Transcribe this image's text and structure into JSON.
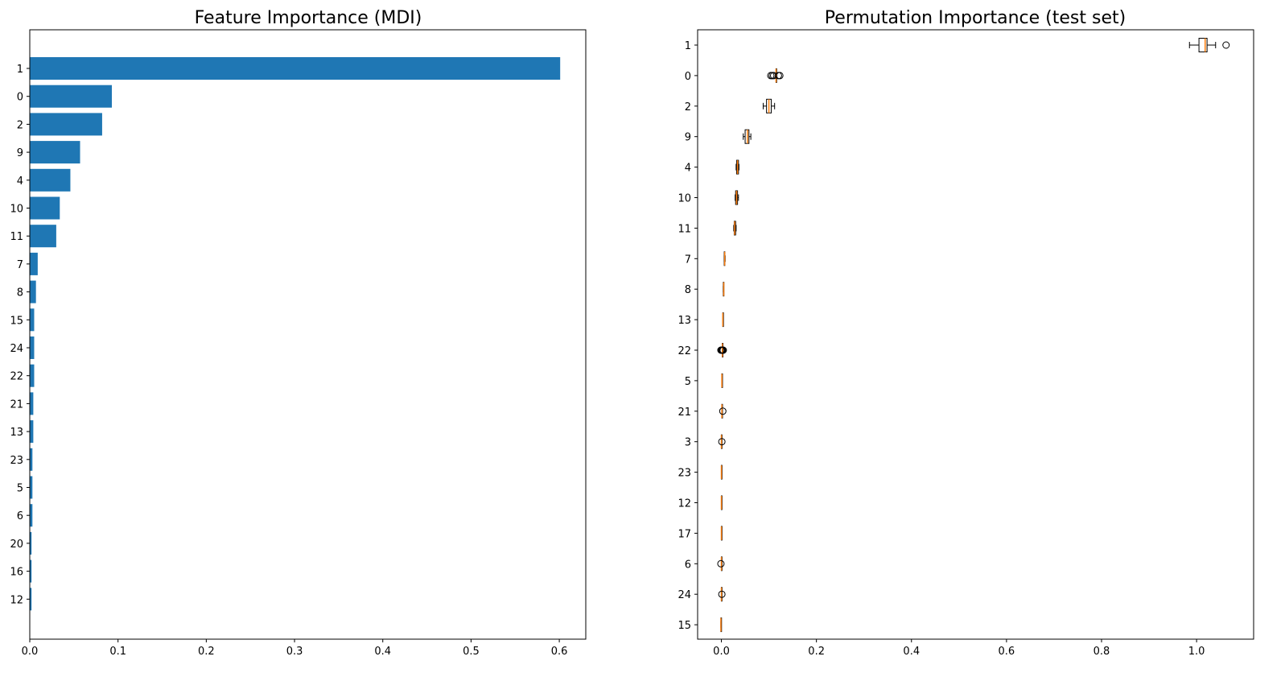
{
  "chart_data": [
    {
      "type": "bar",
      "orientation": "horizontal",
      "title": "Feature Importance (MDI)",
      "xlabel": "",
      "ylabel": "",
      "xlim": [
        0,
        0.63
      ],
      "x_ticks": [
        "0.0",
        "0.1",
        "0.2",
        "0.3",
        "0.4",
        "0.5",
        "0.6"
      ],
      "bar_color": "#1f77b4",
      "categories": [
        "1",
        "0",
        "2",
        "9",
        "4",
        "10",
        "11",
        "7",
        "8",
        "15",
        "24",
        "22",
        "21",
        "13",
        "23",
        "5",
        "6",
        "20",
        "16",
        "12"
      ],
      "values": [
        0.601,
        0.093,
        0.082,
        0.057,
        0.046,
        0.034,
        0.03,
        0.009,
        0.007,
        0.005,
        0.005,
        0.005,
        0.004,
        0.004,
        0.003,
        0.003,
        0.003,
        0.002,
        0.002,
        0.002
      ],
      "grid": false,
      "legend": "none"
    },
    {
      "type": "box",
      "orientation": "horizontal",
      "title": "Permutation Importance (test set)",
      "xlabel": "",
      "ylabel": "",
      "xlim": [
        -0.05,
        1.12
      ],
      "x_ticks": [
        "0.0",
        "0.2",
        "0.4",
        "0.6",
        "0.8",
        "1.0"
      ],
      "box_edge_color": "#000000",
      "median_color": "#ff7f0e",
      "grid": false,
      "legend": "none",
      "categories": [
        "1",
        "0",
        "2",
        "9",
        "4",
        "10",
        "11",
        "7",
        "8",
        "13",
        "22",
        "5",
        "21",
        "3",
        "23",
        "12",
        "17",
        "6",
        "24",
        "15"
      ],
      "boxes": [
        {
          "min": 0.985,
          "q1": 1.005,
          "median": 1.018,
          "q3": 1.022,
          "max": 1.04,
          "outliers": [
            1.062
          ]
        },
        {
          "min": 0.115,
          "q1": 0.115,
          "median": 0.115,
          "q3": 0.115,
          "max": 0.115,
          "outliers": [
            0.104,
            0.107,
            0.11,
            0.12,
            0.123
          ]
        },
        {
          "min": 0.088,
          "q1": 0.095,
          "median": 0.1,
          "q3": 0.105,
          "max": 0.112,
          "outliers": []
        },
        {
          "min": 0.046,
          "q1": 0.05,
          "median": 0.055,
          "q3": 0.058,
          "max": 0.062,
          "outliers": []
        },
        {
          "min": 0.031,
          "q1": 0.032,
          "median": 0.034,
          "q3": 0.036,
          "max": 0.037,
          "outliers": []
        },
        {
          "min": 0.029,
          "q1": 0.03,
          "median": 0.032,
          "q3": 0.034,
          "max": 0.036,
          "outliers": []
        },
        {
          "min": 0.026,
          "q1": 0.027,
          "median": 0.028,
          "q3": 0.03,
          "max": 0.031,
          "outliers": []
        },
        {
          "min": 0.006,
          "q1": 0.006,
          "median": 0.007,
          "q3": 0.007,
          "max": 0.008,
          "outliers": []
        },
        {
          "min": 0.004,
          "q1": 0.004,
          "median": 0.005,
          "q3": 0.005,
          "max": 0.005,
          "outliers": []
        },
        {
          "min": 0.003,
          "q1": 0.003,
          "median": 0.003,
          "q3": 0.004,
          "max": 0.004,
          "outliers": []
        },
        {
          "min": 0.002,
          "q1": 0.002,
          "median": 0.002,
          "q3": 0.002,
          "max": 0.002,
          "outliers": [
            -0.001,
            0.0,
            0.001,
            0.002,
            0.003,
            0.004
          ]
        },
        {
          "min": 0.001,
          "q1": 0.001,
          "median": 0.001,
          "q3": 0.001,
          "max": 0.001,
          "outliers": []
        },
        {
          "min": 0.001,
          "q1": 0.001,
          "median": 0.001,
          "q3": 0.001,
          "max": 0.001,
          "outliers": [
            0.003
          ]
        },
        {
          "min": 0.0,
          "q1": 0.0,
          "median": 0.0,
          "q3": 0.0,
          "max": 0.0,
          "outliers": [
            0.001
          ]
        },
        {
          "min": 0.0,
          "q1": 0.0,
          "median": 0.0,
          "q3": 0.0,
          "max": 0.0,
          "outliers": []
        },
        {
          "min": 0.0,
          "q1": 0.0,
          "median": 0.0,
          "q3": 0.0,
          "max": 0.0,
          "outliers": []
        },
        {
          "min": 0.0,
          "q1": 0.0,
          "median": 0.0,
          "q3": 0.0,
          "max": 0.0,
          "outliers": []
        },
        {
          "min": 0.0,
          "q1": 0.0,
          "median": 0.0,
          "q3": 0.0,
          "max": 0.0,
          "outliers": [
            -0.001
          ]
        },
        {
          "min": 0.0,
          "q1": 0.0,
          "median": 0.0,
          "q3": 0.0,
          "max": 0.0,
          "outliers": [
            0.001
          ]
        },
        {
          "min": -0.001,
          "q1": -0.001,
          "median": -0.001,
          "q3": -0.001,
          "max": -0.001,
          "outliers": []
        }
      ]
    }
  ]
}
